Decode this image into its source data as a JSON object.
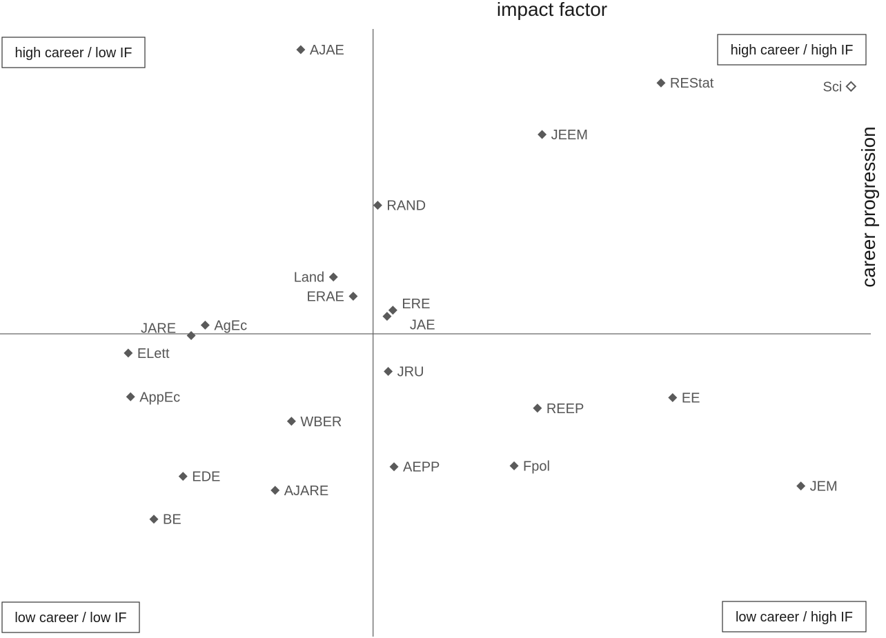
{
  "chart_data": {
    "type": "scatter",
    "title": "",
    "xlabel": "impact factor",
    "ylabel": "career progression",
    "xlim": [
      -3.2,
      4.4
    ],
    "ylim": [
      -3.4,
      3.7
    ],
    "grid": false,
    "quadrants": {
      "top_left": "high career / low IF",
      "top_right": "high career / high IF",
      "bottom_left": "low career / low IF",
      "bottom_right": "low career / high IF"
    },
    "points": [
      {
        "label": "AJAE",
        "x": -0.62,
        "y": 3.25,
        "filled": true
      },
      {
        "label": "REStat",
        "x": 2.47,
        "y": 2.87,
        "filled": true
      },
      {
        "label": "Sci",
        "x": 4.1,
        "y": 2.83,
        "filled": false
      },
      {
        "label": "JEEM",
        "x": 1.45,
        "y": 2.28,
        "filled": true
      },
      {
        "label": "RAND",
        "x": 0.04,
        "y": 1.47,
        "filled": true
      },
      {
        "label": "Land",
        "x": -0.34,
        "y": 0.65,
        "filled": true
      },
      {
        "label": "ERAE",
        "x": -0.17,
        "y": 0.43,
        "filled": true
      },
      {
        "label": "ERE",
        "x": 0.17,
        "y": 0.27,
        "filled": true
      },
      {
        "label": "JAE",
        "x": 0.12,
        "y": 0.2,
        "filled": true
      },
      {
        "label": "AgEc",
        "x": -1.44,
        "y": 0.1,
        "filled": true
      },
      {
        "label": "JARE",
        "x": -1.56,
        "y": -0.02,
        "filled": true
      },
      {
        "label": "ELett",
        "x": -2.1,
        "y": -0.22,
        "filled": true
      },
      {
        "label": "JRU",
        "x": 0.13,
        "y": -0.43,
        "filled": true
      },
      {
        "label": "AppEc",
        "x": -2.08,
        "y": -0.72,
        "filled": true
      },
      {
        "label": "EE",
        "x": 2.57,
        "y": -0.73,
        "filled": true
      },
      {
        "label": "REEP",
        "x": 1.41,
        "y": -0.85,
        "filled": true
      },
      {
        "label": "WBER",
        "x": -0.7,
        "y": -1.0,
        "filled": true
      },
      {
        "label": "AEPP",
        "x": 0.18,
        "y": -1.52,
        "filled": true
      },
      {
        "label": "Fpol",
        "x": 1.21,
        "y": -1.51,
        "filled": true
      },
      {
        "label": "EDE",
        "x": -1.63,
        "y": -1.63,
        "filled": true
      },
      {
        "label": "AJARE",
        "x": -0.84,
        "y": -1.79,
        "filled": true
      },
      {
        "label": "JEM",
        "x": 3.67,
        "y": -1.74,
        "filled": true
      },
      {
        "label": "BE",
        "x": -1.88,
        "y": -2.12,
        "filled": true
      }
    ]
  }
}
